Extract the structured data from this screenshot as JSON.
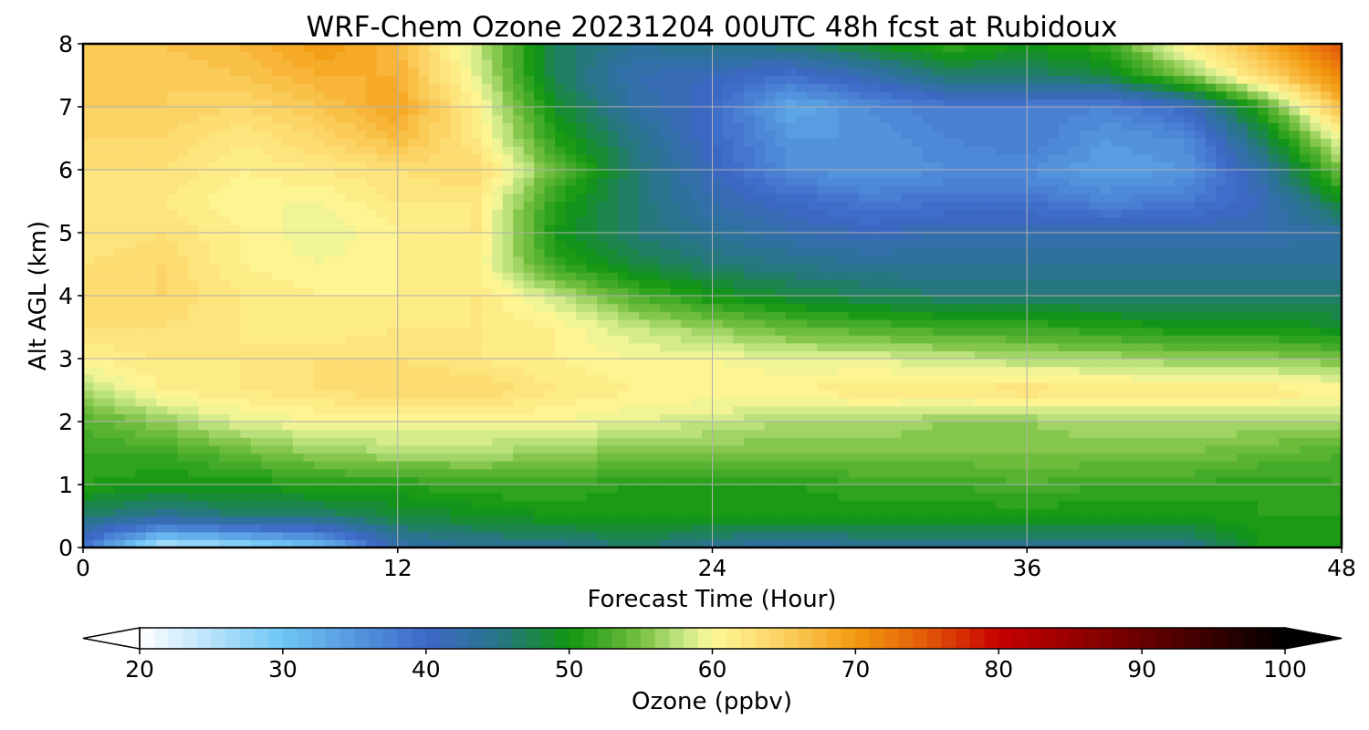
{
  "chart_data": {
    "type": "heatmap",
    "title": "WRF-Chem Ozone  20231204 00UTC 48h fcst at Rubidoux",
    "xlabel": "Forecast Time (Hour)",
    "ylabel": "Alt AGL (km)",
    "xlim": [
      0,
      48
    ],
    "ylim": [
      0,
      8
    ],
    "x_ticks": [
      0,
      12,
      24,
      36,
      48
    ],
    "y_ticks": [
      0,
      1,
      2,
      3,
      4,
      5,
      6,
      7,
      8
    ],
    "grid": true,
    "colorbar": {
      "label": "Ozone  (ppbv)",
      "range": [
        20,
        100
      ],
      "ticks": [
        20,
        30,
        40,
        50,
        60,
        70,
        80,
        90,
        100
      ],
      "extend": "both",
      "colors": [
        {
          "v": 20,
          "c": "#ffffff"
        },
        {
          "v": 30,
          "c": "#6ec6f5"
        },
        {
          "v": 40,
          "c": "#3d68c8"
        },
        {
          "v": 45,
          "c": "#28758a"
        },
        {
          "v": 50,
          "c": "#109610"
        },
        {
          "v": 55,
          "c": "#78c040"
        },
        {
          "v": 58,
          "c": "#c8e888"
        },
        {
          "v": 60,
          "c": "#fff898"
        },
        {
          "v": 65,
          "c": "#fcd060"
        },
        {
          "v": 70,
          "c": "#f39a10"
        },
        {
          "v": 75,
          "c": "#e25808"
        },
        {
          "v": 80,
          "c": "#c80000"
        },
        {
          "v": 90,
          "c": "#6a0000"
        },
        {
          "v": 100,
          "c": "#000000"
        }
      ]
    },
    "x_hours": [
      0,
      3,
      6,
      9,
      12,
      15,
      18,
      21,
      24,
      27,
      30,
      33,
      36,
      39,
      42,
      45,
      48
    ],
    "y_km": [
      0,
      0.5,
      1,
      1.5,
      2,
      2.5,
      3,
      3.5,
      4,
      4.5,
      5,
      5.5,
      6,
      6.5,
      7,
      7.5,
      8
    ],
    "ozone_ppbv": [
      [
        38,
        24,
        26,
        30,
        42,
        44,
        44,
        46,
        44,
        42,
        44,
        44,
        44,
        44,
        44,
        50,
        50
      ],
      [
        46,
        44,
        46,
        46,
        48,
        49,
        50,
        50,
        50,
        50,
        50,
        50,
        50,
        50,
        50,
        51,
        51
      ],
      [
        51,
        50,
        50,
        51,
        51,
        52,
        52,
        51,
        51,
        51,
        52,
        52,
        53,
        52,
        52,
        51,
        52
      ],
      [
        52,
        52,
        54,
        56,
        57,
        57,
        56,
        55,
        55,
        55,
        55,
        55,
        55,
        55,
        55,
        54,
        53
      ],
      [
        53,
        56,
        59,
        60,
        60,
        60,
        60,
        59,
        58,
        57,
        57,
        56,
        56,
        57,
        57,
        57,
        57
      ],
      [
        57,
        61,
        62,
        63,
        64,
        64,
        62,
        61,
        61,
        61,
        62,
        62,
        63,
        62,
        62,
        62,
        61
      ],
      [
        61,
        62,
        62,
        63,
        63,
        62,
        61,
        60,
        60,
        59,
        59,
        58,
        57,
        57,
        56,
        56,
        55
      ],
      [
        63,
        63,
        62,
        61,
        62,
        62,
        61,
        58,
        56,
        54,
        53,
        52,
        52,
        51,
        50,
        50,
        49
      ],
      [
        64,
        64,
        62,
        61,
        61,
        62,
        58,
        53,
        50,
        48,
        47,
        46,
        46,
        46,
        46,
        46,
        46
      ],
      [
        63,
        64,
        61,
        60,
        61,
        61,
        52,
        48,
        46,
        45,
        44,
        44,
        44,
        44,
        44,
        44,
        44
      ],
      [
        62,
        63,
        61,
        59,
        61,
        62,
        50,
        46,
        44,
        42,
        41,
        42,
        42,
        42,
        42,
        42,
        43
      ],
      [
        62,
        62,
        60,
        60,
        62,
        62,
        51,
        46,
        42,
        40,
        38,
        39,
        39,
        37,
        38,
        41,
        49
      ],
      [
        63,
        63,
        61,
        62,
        63,
        64,
        54,
        46,
        41,
        36,
        35,
        36,
        36,
        34,
        35,
        43,
        55
      ],
      [
        64,
        64,
        62,
        64,
        67,
        62,
        51,
        45,
        40,
        35,
        35,
        37,
        38,
        35,
        36,
        47,
        60
      ],
      [
        65,
        65,
        64,
        66,
        69,
        61,
        49,
        43,
        40,
        33,
        36,
        38,
        38,
        37,
        40,
        52,
        67
      ],
      [
        66,
        65,
        66,
        68,
        68,
        59,
        47,
        42,
        41,
        39,
        42,
        46,
        46,
        48,
        55,
        64,
        72
      ],
      [
        66,
        66,
        67,
        70,
        67,
        58,
        47,
        44,
        45,
        46,
        49,
        52,
        50,
        52,
        61,
        68,
        76
      ]
    ]
  }
}
